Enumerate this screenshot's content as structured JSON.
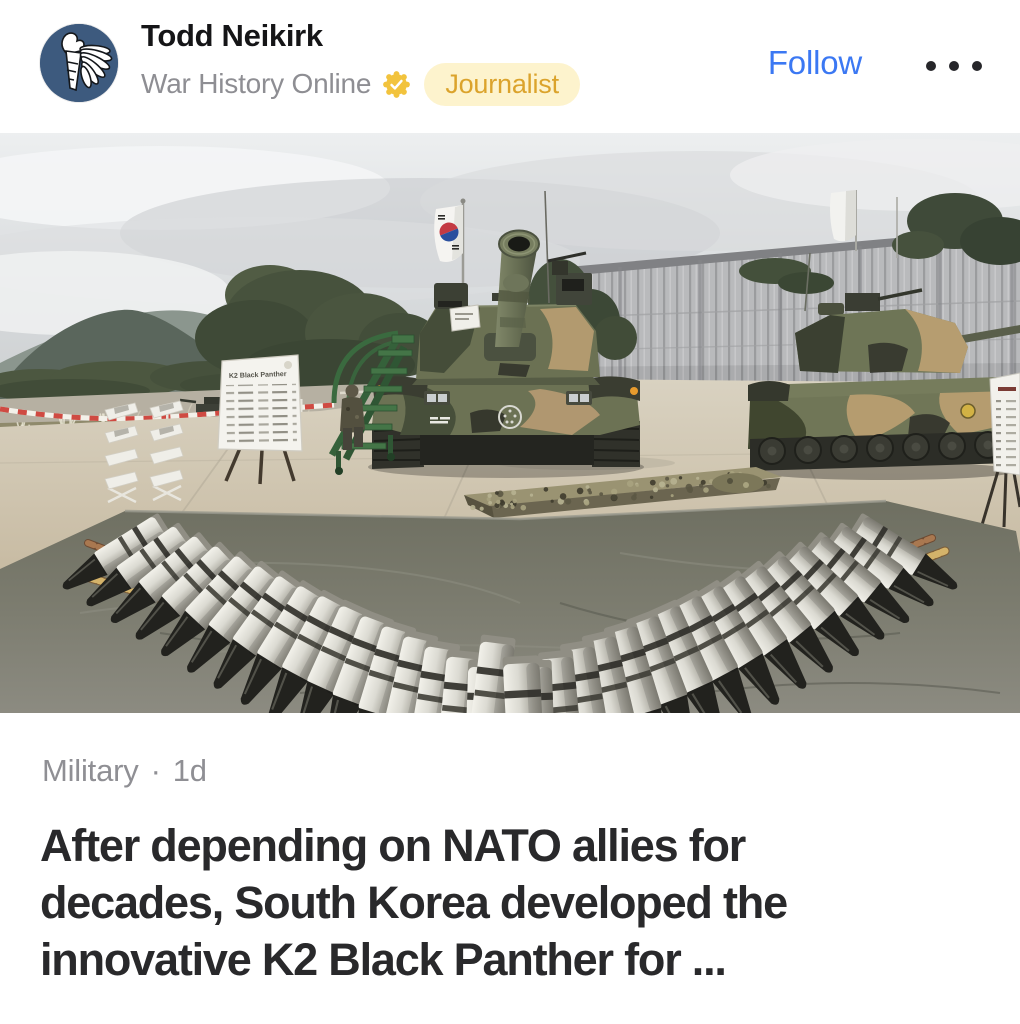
{
  "header": {
    "author": "Todd Neikirk",
    "publication": "War History Online",
    "verified_icon": "gold-check-seal",
    "badge_label": "Journalist",
    "follow_label": "Follow",
    "more_icon": "ellipsis"
  },
  "meta": {
    "category": "Military",
    "separator": "·",
    "age": "1d"
  },
  "headline": {
    "lines": [
      "After depending on NATO allies for",
      "decades, South Korea developed the",
      "innovative K2 Black Panther for ..."
    ],
    "full": "After depending on NATO allies for decades, South Korea developed the innovative K2 Black Panther for ..."
  },
  "photo": {
    "alt": "K2 Black Panther tanks on outdoor display with tank shells and ammunition belts arranged in a V shape on a tarp",
    "sign_title": "K2 Black Panther",
    "shell_count": 34,
    "palette": {
      "sky": "#dfe2e4",
      "wall": "#b9babc",
      "concrete": "#cfc5ae",
      "tarp": "#76766a",
      "tank_green": "#6b7153",
      "tank_tan": "#b29a6f",
      "tank_dark": "#2d2e27",
      "shell_silver": "#d9d8d0",
      "shell_tip": "#22221e",
      "stairs_green": "#3c6b40",
      "flag_red": "#c43a43",
      "flag_blue": "#2a4f9e",
      "belt_copper": "#a97850",
      "belt_gold": "#d4b36a"
    }
  },
  "colors": {
    "follow_blue": "#3b78f3",
    "badge_bg": "#fdf3cd",
    "badge_text": "#dba32c",
    "headline_text": "#29292b",
    "meta_text": "#8f8f94",
    "name_text": "#151517",
    "publication_text": "#8e8e93",
    "avatar_bg": "#3d5a7e"
  }
}
